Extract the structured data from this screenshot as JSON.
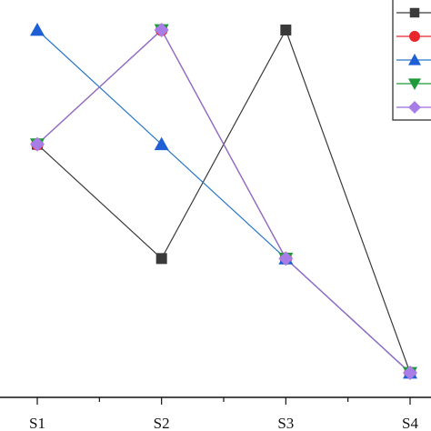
{
  "chart_data": {
    "type": "line",
    "categories": [
      "S1",
      "S2",
      "S3",
      "S4"
    ],
    "ylim": [
      0.5,
      4.5
    ],
    "grid": false,
    "legend_position": "top-right",
    "series": [
      {
        "marker": "square",
        "color": "#3a3a3a",
        "line_color": "#3a3a3a",
        "values": [
          3,
          2,
          4,
          1
        ]
      },
      {
        "marker": "circle",
        "color": "#e8262b",
        "line_color": "#e8262b",
        "values": [
          3,
          4,
          2,
          1
        ]
      },
      {
        "marker": "triangle",
        "color": "#1f5fd6",
        "line_color": "#2a76c4",
        "values": [
          4,
          3,
          2,
          1
        ]
      },
      {
        "marker": "triangle-down",
        "color": "#1e9a3b",
        "line_color": "#1e9a3b",
        "values": [
          3,
          4,
          2,
          1
        ]
      },
      {
        "marker": "diamond",
        "color": "#a87ee6",
        "line_color": "#9b6ad8",
        "values": [
          3,
          4,
          2,
          1
        ]
      }
    ]
  }
}
